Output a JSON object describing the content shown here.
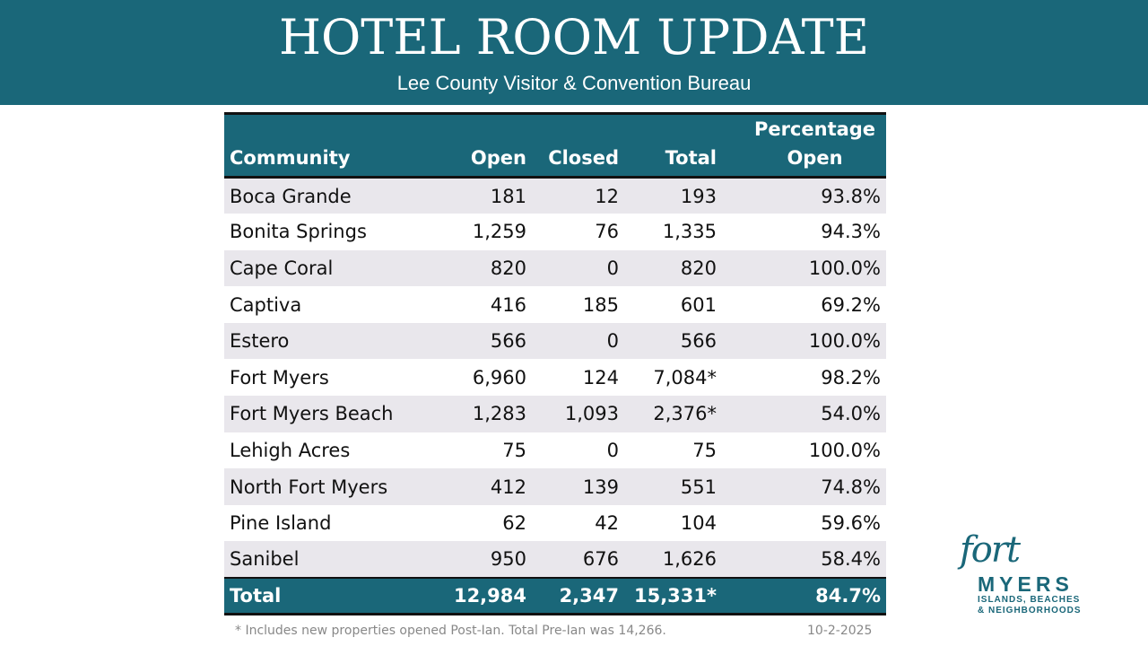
{
  "header": {
    "title": "HOTEL ROOM UPDATE",
    "subtitle": "Lee County Visitor & Convention Bureau"
  },
  "table": {
    "columns": [
      "Community",
      "Open",
      "Closed",
      "Total",
      "Percentage Open"
    ],
    "rows": [
      [
        "Boca Grande",
        "181",
        "12",
        "193",
        "93.8%"
      ],
      [
        "Bonita Springs",
        "1,259",
        "76",
        "1,335",
        "94.3%"
      ],
      [
        "Cape Coral",
        "820",
        "0",
        "820",
        "100.0%"
      ],
      [
        "Captiva",
        "416",
        "185",
        "601",
        "69.2%"
      ],
      [
        "Estero",
        "566",
        "0",
        "566",
        "100.0%"
      ],
      [
        "Fort Myers",
        "6,960",
        "124",
        "7,084*",
        "98.2%"
      ],
      [
        "Fort Myers Beach",
        "1,283",
        "1,093",
        "2,376*",
        "54.0%"
      ],
      [
        "Lehigh Acres",
        "75",
        "0",
        "75",
        "100.0%"
      ],
      [
        "North Fort Myers",
        "412",
        "139",
        "551",
        "74.8%"
      ],
      [
        "Pine Island",
        "62",
        "42",
        "104",
        "59.6%"
      ],
      [
        "Sanibel",
        "950",
        "676",
        "1,626",
        "58.4%"
      ]
    ],
    "total": [
      "Total",
      "12,984",
      "2,347",
      "15,331*",
      "84.7%"
    ]
  },
  "footer": {
    "note": "* Includes new properties opened Post-Ian. Total Pre-Ian was 14,266.",
    "date": "10-2-2025"
  },
  "logo": {
    "script": "fort",
    "name": "MYERS",
    "line1": "ISLANDS, BEACHES",
    "line2": "& NEIGHBORHOODS"
  },
  "colors": {
    "brand": "#1a6779",
    "row_alt": "#e9e7ec"
  }
}
